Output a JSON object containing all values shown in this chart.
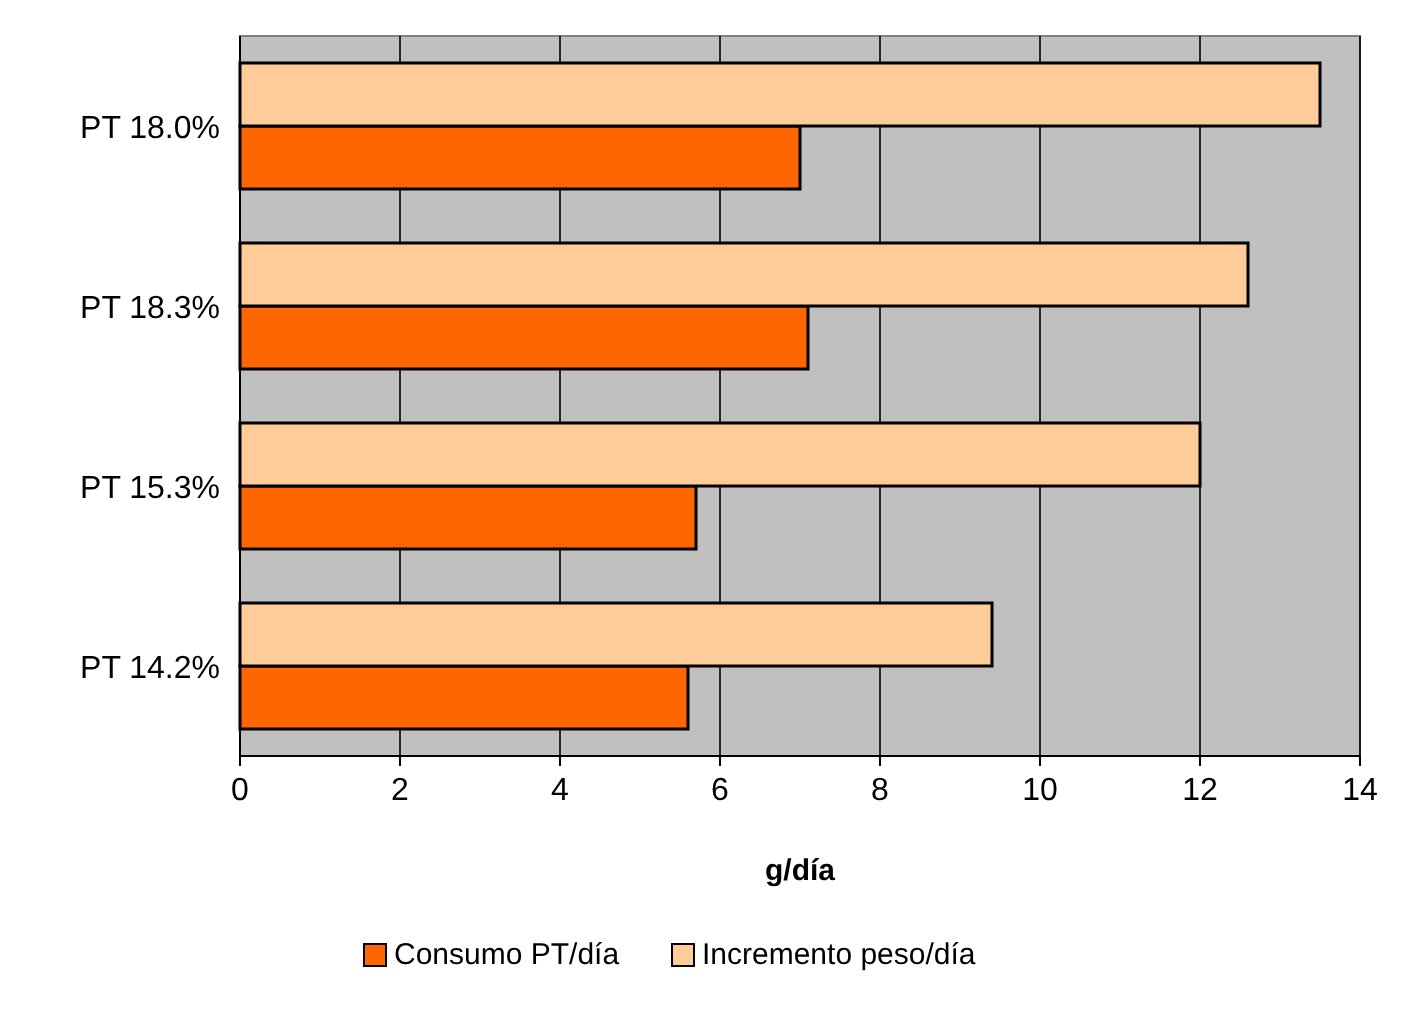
{
  "chart_data": {
    "type": "bar",
    "orientation": "horizontal",
    "xlabel": "g/día",
    "categories": [
      "PT 18.0%",
      "PT 18.3%",
      "PT 15.3%",
      "PT 14.2%"
    ],
    "series": [
      {
        "name": "Consumo PT/día",
        "color": "#ff6600",
        "values": [
          7.0,
          7.1,
          5.7,
          5.6
        ]
      },
      {
        "name": "Incremento peso/día",
        "color": "#ffcc99",
        "values": [
          13.5,
          12.6,
          12.0,
          9.4
        ]
      }
    ],
    "xlim": [
      0,
      14
    ],
    "xticks": [
      0,
      2,
      4,
      6,
      8,
      10,
      12,
      14
    ],
    "grid": "x",
    "legend": "bottom"
  }
}
